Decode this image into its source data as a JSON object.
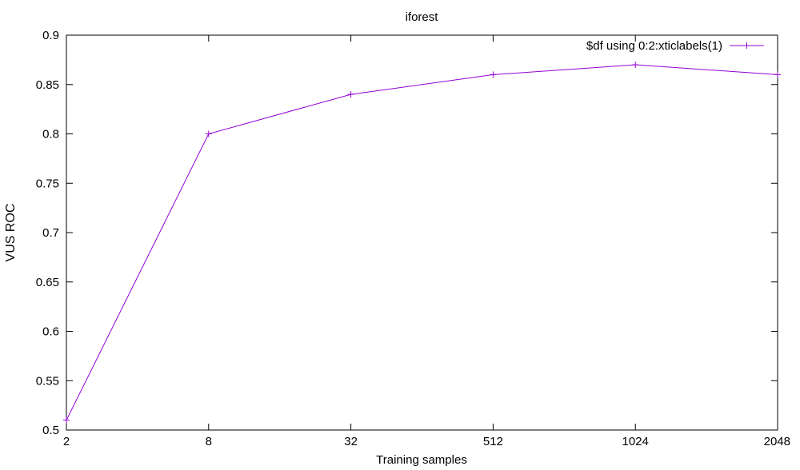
{
  "chart_data": {
    "type": "line",
    "title": "iforest",
    "xlabel": "Training samples",
    "ylabel": "VUS ROC",
    "categories": [
      "2",
      "8",
      "32",
      "512",
      "1024",
      "2048"
    ],
    "yticks": [
      "0.5",
      "0.55",
      "0.6",
      "0.65",
      "0.7",
      "0.75",
      "0.8",
      "0.85",
      "0.9"
    ],
    "ylim": [
      0.5,
      0.9
    ],
    "grid": false,
    "legend_position": "top-right",
    "series": [
      {
        "name": "$df using 0:2:xticlabels(1)",
        "color": "#9400d3",
        "values": [
          0.51,
          0.8,
          0.84,
          0.86,
          0.87,
          0.86
        ]
      }
    ]
  }
}
